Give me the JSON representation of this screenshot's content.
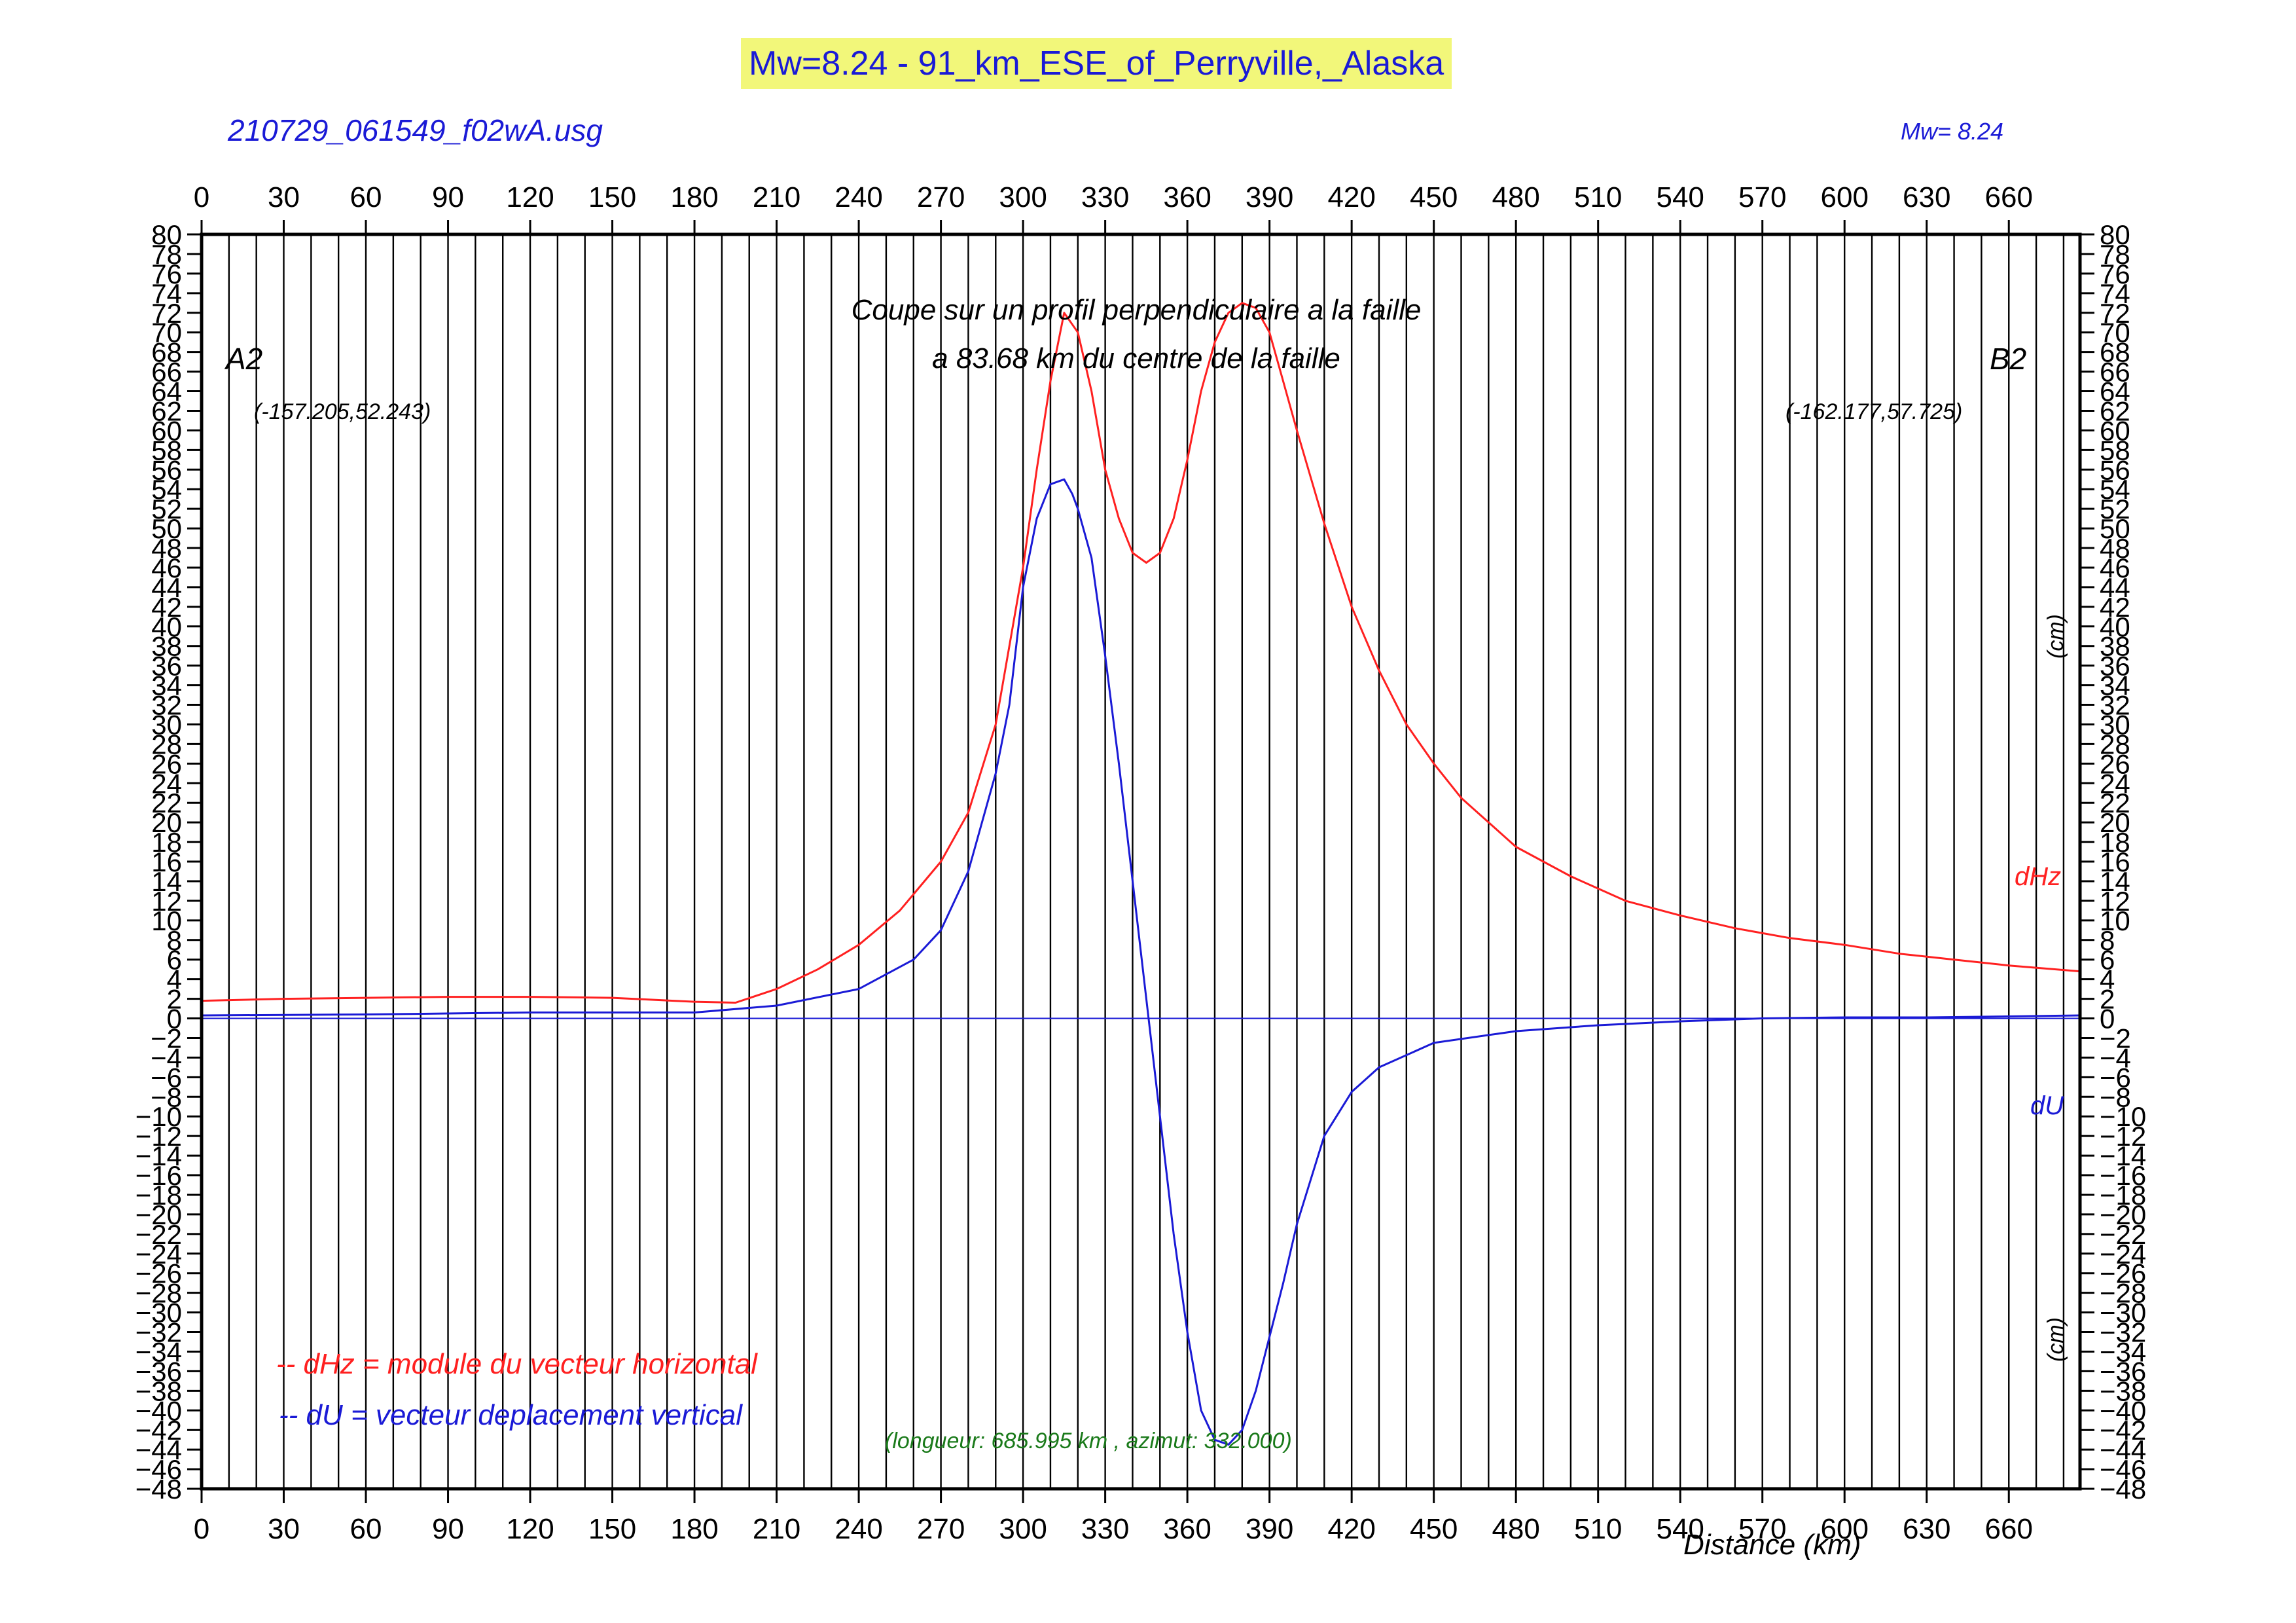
{
  "header": {
    "title": "Mw=8.24 - 91_km_ESE_of_Perryville,_Alaska",
    "file_name": "210729_061549_f02wA.usg",
    "magnitude_label": "Mw= 8.24"
  },
  "colors": {
    "title_background": "#f2f77a",
    "title_text": "#1a1ad6",
    "dHz": "#ff2020",
    "dU": "#1a1ad6",
    "info": "#1a7a1a",
    "grid": "#000000"
  },
  "chart_data": {
    "type": "line",
    "title": "Coupe sur un profil perpendiculaire a la faille",
    "subtitle": "a 83.68 km du centre de la faille",
    "xlabel": "Distance (km)",
    "ylabel_right_top": "(cm)",
    "ylabel_right_bottom": "(cm)",
    "xlim": [
      0,
      685.995
    ],
    "ylim": [
      -48,
      80
    ],
    "x_ticks": [
      0,
      30,
      60,
      90,
      120,
      150,
      180,
      210,
      240,
      270,
      300,
      330,
      360,
      390,
      420,
      450,
      480,
      510,
      540,
      570,
      600,
      630,
      660
    ],
    "y_ticks": [
      80,
      78,
      76,
      74,
      72,
      70,
      68,
      66,
      64,
      62,
      60,
      58,
      56,
      54,
      52,
      50,
      48,
      46,
      44,
      42,
      40,
      38,
      36,
      34,
      32,
      30,
      28,
      26,
      24,
      22,
      20,
      18,
      16,
      14,
      12,
      10,
      8,
      6,
      4,
      2,
      0,
      -2,
      -4,
      -6,
      -8,
      -10,
      -12,
      -14,
      -16,
      -18,
      -20,
      -22,
      -24,
      -26,
      -28,
      -30,
      -32,
      -34,
      -36,
      -38,
      -40,
      -42,
      -44,
      -46,
      -48
    ],
    "grid_x_step": 10,
    "grid": true,
    "point_A": {
      "label": "A2",
      "coords": "(-157.205,52.243)"
    },
    "point_B": {
      "label": "B2",
      "coords": "(-162.177,57.725)"
    },
    "series": [
      {
        "name": "dHz",
        "x": [
          0,
          30,
          60,
          90,
          120,
          150,
          180,
          195,
          210,
          225,
          240,
          255,
          270,
          280,
          290,
          300,
          305,
          310,
          315,
          320,
          325,
          330,
          335,
          340,
          345,
          350,
          355,
          360,
          365,
          370,
          375,
          380,
          385,
          390,
          395,
          400,
          410,
          420,
          430,
          440,
          450,
          460,
          480,
          500,
          520,
          540,
          560,
          580,
          600,
          620,
          640,
          660,
          685.995
        ],
        "y": [
          1.8,
          2,
          2.1,
          2.2,
          2.2,
          2.1,
          1.7,
          1.6,
          3,
          5,
          7.5,
          11,
          16,
          21,
          30,
          46,
          56,
          65,
          72,
          70,
          64,
          56,
          51,
          47.5,
          46.5,
          47.5,
          51,
          57,
          64,
          69,
          72,
          73,
          72.5,
          70,
          65,
          60,
          50.5,
          42,
          35.5,
          30,
          26,
          22.5,
          17.5,
          14.5,
          12,
          10.5,
          9.2,
          8.2,
          7.5,
          6.6,
          6,
          5.4,
          4.8
        ]
      },
      {
        "name": "dU",
        "x": [
          0,
          60,
          120,
          180,
          210,
          240,
          260,
          270,
          280,
          290,
          295,
          300,
          305,
          310,
          315,
          318,
          320,
          325,
          330,
          335,
          340,
          345,
          350,
          355,
          360,
          365,
          370,
          375,
          380,
          385,
          390,
          395,
          400,
          410,
          420,
          430,
          450,
          480,
          510,
          540,
          570,
          600,
          630,
          660,
          685.995
        ],
        "y": [
          0.3,
          0.4,
          0.6,
          0.6,
          1.3,
          3,
          6,
          9,
          15,
          25,
          32,
          44,
          51,
          54.5,
          55,
          53.5,
          52,
          47,
          37,
          26,
          14,
          2,
          -10,
          -22,
          -32,
          -40,
          -43,
          -43.5,
          -42,
          -38,
          -32.5,
          -27,
          -21,
          -12,
          -7.5,
          -5,
          -2.5,
          -1.3,
          -0.7,
          -0.3,
          0,
          0.1,
          0.1,
          0.2,
          0.3
        ]
      }
    ],
    "legend": {
      "dHz_label": "-- dHz = module du vecteur horizontal",
      "dU_label": "-- dU =  vecteur deplacement vertical",
      "placement": "bottom-left"
    },
    "series_labels": {
      "dHz": "dHz",
      "dU": "dU"
    },
    "info_text": "(longueur: 685.995 km , azimut: 332.000)"
  }
}
